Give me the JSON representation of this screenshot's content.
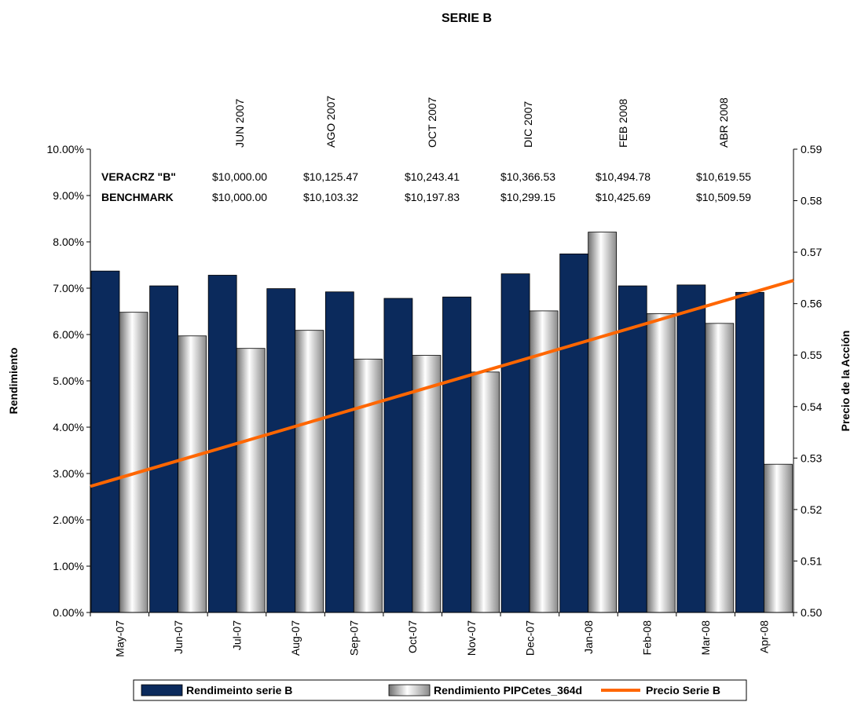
{
  "chart_data": {
    "type": "bar",
    "title": "SERIE B",
    "categories": [
      "May-07",
      "Jun-07",
      "Jul-07",
      "Aug-07",
      "Sep-07",
      "Oct-07",
      "Nov-07",
      "Dec-07",
      "Jan-08",
      "Feb-08",
      "Mar-08",
      "Apr-08"
    ],
    "ylabel": "Rendimiento",
    "y2label": "Precio de la Acción",
    "ylim": [
      0,
      0.1
    ],
    "y2lim": [
      0.5,
      0.59
    ],
    "yticks": [
      "0.00%",
      "1.00%",
      "2.00%",
      "3.00%",
      "4.00%",
      "5.00%",
      "6.00%",
      "7.00%",
      "8.00%",
      "9.00%",
      "10.00%"
    ],
    "y2ticks": [
      "0.50",
      "0.51",
      "0.52",
      "0.53",
      "0.54",
      "0.55",
      "0.56",
      "0.57",
      "0.58",
      "0.59"
    ],
    "series": [
      {
        "name": "Rendimeinto serie B",
        "type": "bar",
        "axis": "left",
        "color": "#0b2a5c",
        "values": [
          0.0737,
          0.0705,
          0.0728,
          0.0699,
          0.0692,
          0.0678,
          0.0681,
          0.0731,
          0.0774,
          0.0705,
          0.0707,
          0.0691
        ]
      },
      {
        "name": "Rendimiento PIPCetes_364d",
        "type": "bar",
        "axis": "left",
        "color": "#d9d9d9",
        "values": [
          0.0648,
          0.0597,
          0.057,
          0.0609,
          0.0547,
          0.0555,
          0.0519,
          0.0651,
          0.0821,
          0.0645,
          0.0624,
          0.032
        ]
      },
      {
        "name": "Precio Serie B",
        "type": "line",
        "axis": "right",
        "color": "#ff6600",
        "x": [
          0,
          12
        ],
        "values": [
          0.5245,
          0.5645
        ]
      }
    ],
    "legend": "bottom",
    "grid": false,
    "annotations": {
      "periods": [
        "JUN 2007",
        "AGO 2007",
        "OCT 2007",
        "DIC 2007",
        "FEB 2008",
        "ABR 2008"
      ],
      "rows": [
        {
          "label": "VERACRZ \"B\"",
          "values": [
            "$10,000.00",
            "$10,125.47",
            "$10,243.41",
            "$10,366.53",
            "$10,494.78",
            "$10,619.55"
          ]
        },
        {
          "label": "BENCHMARK",
          "values": [
            "$10,000.00",
            "$10,103.32",
            "$10,197.83",
            "$10,299.15",
            "$10,425.69",
            "$10,509.59"
          ]
        }
      ]
    }
  }
}
